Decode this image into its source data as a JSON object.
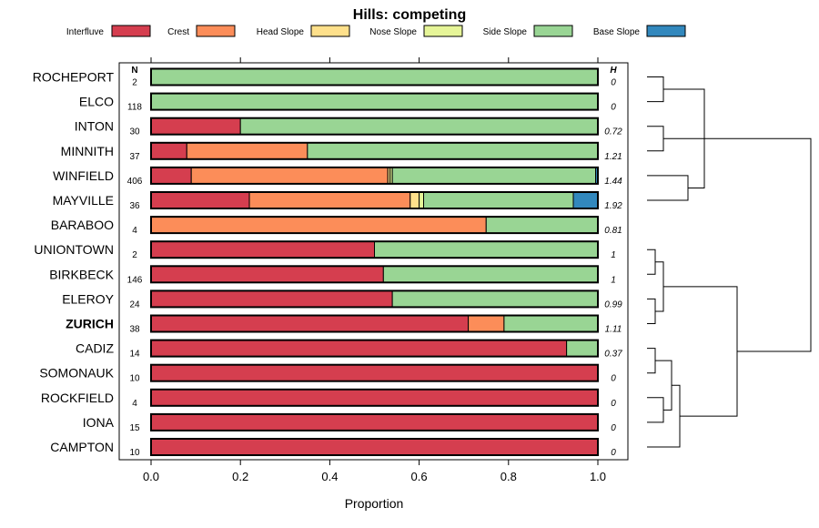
{
  "chart_data": {
    "type": "bar",
    "stacked": true,
    "orientation": "horizontal",
    "title": "Hills: competing",
    "xlabel": "Proportion",
    "ylabel": "",
    "xlim": [
      0,
      1
    ],
    "x_ticks": [
      0.0,
      0.2,
      0.4,
      0.6,
      0.8,
      1.0
    ],
    "x_tick_labels": [
      "0.0",
      "0.2",
      "0.4",
      "0.6",
      "0.8",
      "1.0"
    ],
    "n_header": "N",
    "h_header": "H",
    "highlight_category": "ZURICH",
    "legend_position": "top",
    "categories": [
      "ROCHEPORT",
      "ELCO",
      "INTON",
      "MINNITH",
      "WINFIELD",
      "MAYVILLE",
      "BARABOO",
      "UNIONTOWN",
      "BIRKBECK",
      "ELEROY",
      "ZURICH",
      "CADIZ",
      "SOMONAUK",
      "ROCKFIELD",
      "IONA",
      "CAMPTON"
    ],
    "n": [
      "2",
      "118",
      "30",
      "37",
      "406",
      "36",
      "4",
      "2",
      "146",
      "24",
      "38",
      "14",
      "10",
      "4",
      "15",
      "10"
    ],
    "h": [
      "0",
      "0",
      "0.72",
      "1.21",
      "1.44",
      "1.92",
      "0.81",
      "1",
      "1",
      "0.99",
      "1.11",
      "0.37",
      "0",
      "0",
      "0",
      "0"
    ],
    "series": [
      {
        "name": "Interfluve",
        "color": "#d53e4f",
        "values": [
          0,
          0,
          0.2,
          0.08,
          0.09,
          0.22,
          0,
          0.5,
          0.52,
          0.54,
          0.71,
          0.93,
          1,
          1,
          1,
          1
        ]
      },
      {
        "name": "Crest",
        "color": "#fc8d59",
        "values": [
          0,
          0,
          0,
          0.27,
          0.44,
          0.36,
          0.75,
          0,
          0,
          0,
          0.08,
          0,
          0,
          0,
          0,
          0
        ]
      },
      {
        "name": "Head Slope",
        "color": "#fee08b",
        "values": [
          0,
          0,
          0,
          0,
          0.005,
          0.02,
          0,
          0,
          0,
          0,
          0,
          0,
          0,
          0,
          0,
          0
        ]
      },
      {
        "name": "Nose Slope",
        "color": "#e6f598",
        "values": [
          0,
          0,
          0,
          0,
          0.005,
          0.01,
          0,
          0,
          0,
          0,
          0,
          0,
          0,
          0,
          0,
          0
        ]
      },
      {
        "name": "Side Slope",
        "color": "#99d594",
        "values": [
          1,
          1,
          0.8,
          0.65,
          0.455,
          0.335,
          0.25,
          0.5,
          0.48,
          0.46,
          0.21,
          0.07,
          0,
          0,
          0,
          0
        ]
      },
      {
        "name": "Base Slope",
        "color": "#3288bd",
        "values": [
          0,
          0,
          0,
          0,
          0.005,
          0.055,
          0,
          0,
          0,
          0,
          0,
          0,
          0,
          0,
          0,
          0
        ]
      }
    ],
    "dendrogram": {
      "merges": [
        [
          0,
          1,
          0.1
        ],
        [
          2,
          3,
          0.1
        ],
        [
          4,
          5,
          0.25
        ],
        [
          16,
          18,
          0.35
        ],
        [
          17,
          19,
          0.55
        ],
        [
          7,
          8,
          0.05
        ],
        [
          9,
          10,
          0.05
        ],
        [
          21,
          22,
          0.1
        ],
        [
          11,
          12,
          0.05
        ],
        [
          13,
          14,
          0.1
        ],
        [
          24,
          25,
          0.15
        ],
        [
          15,
          26,
          0.2
        ],
        [
          23,
          27,
          0.55
        ],
        [
          20,
          28,
          1.0
        ]
      ],
      "max_height": 1.0
    }
  }
}
